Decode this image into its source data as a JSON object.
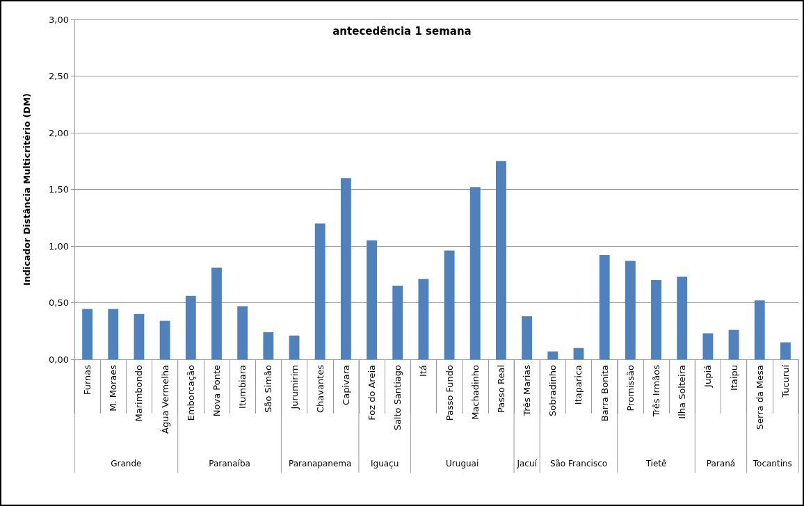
{
  "chart_data": {
    "type": "bar",
    "title": "antecedência 1 semana",
    "ylabel": "Indicador Distância Multicritério (DM)",
    "categories": [
      "Furnas",
      "M. Moraes",
      "Marimbondo",
      "Água Vermelha",
      "Emborcação",
      "Nova Ponte",
      "Itumbiara",
      "São Simão",
      "Jurumirim",
      "Chavantes",
      "Capivara",
      "Foz do Areia",
      "Salto Santiago",
      "Itá",
      "Passo Fundo",
      "Machadinho",
      "Passo Real",
      "Três Marias",
      "Sobradinho",
      "Itaparica",
      "Barra Bonita",
      "Promissão",
      "Três Irmãos",
      "Ilha Solteira",
      "Jupiá",
      "Itaipu",
      "Serra da Mesa",
      "Tucuruí"
    ],
    "values": [
      0.445,
      0.445,
      0.4,
      0.34,
      0.56,
      0.81,
      0.47,
      0.24,
      0.21,
      1.2,
      1.6,
      1.05,
      0.65,
      0.71,
      0.96,
      1.52,
      1.75,
      0.38,
      0.07,
      0.1,
      0.92,
      0.87,
      0.7,
      0.73,
      0.23,
      0.26,
      0.52,
      0.15
    ],
    "color": "#4f81bd",
    "ylim": [
      0,
      3
    ],
    "yticks": [
      {
        "value": 0,
        "label": "0,00"
      },
      {
        "value": 0.5,
        "label": "0,50"
      },
      {
        "value": 1,
        "label": "1,00"
      },
      {
        "value": 1.5,
        "label": "1,50"
      },
      {
        "value": 2,
        "label": "2,00"
      },
      {
        "value": 2.5,
        "label": "2,50"
      },
      {
        "value": 3,
        "label": "3,00"
      }
    ],
    "grid": true,
    "annotations": [
      "Grande",
      "Paranaíba",
      "Paranapanema",
      "Iguaçu",
      "Uruguai",
      "Jacuí",
      "São Francisco",
      "Tietê",
      "Paraná",
      "Tocantins"
    ]
  }
}
